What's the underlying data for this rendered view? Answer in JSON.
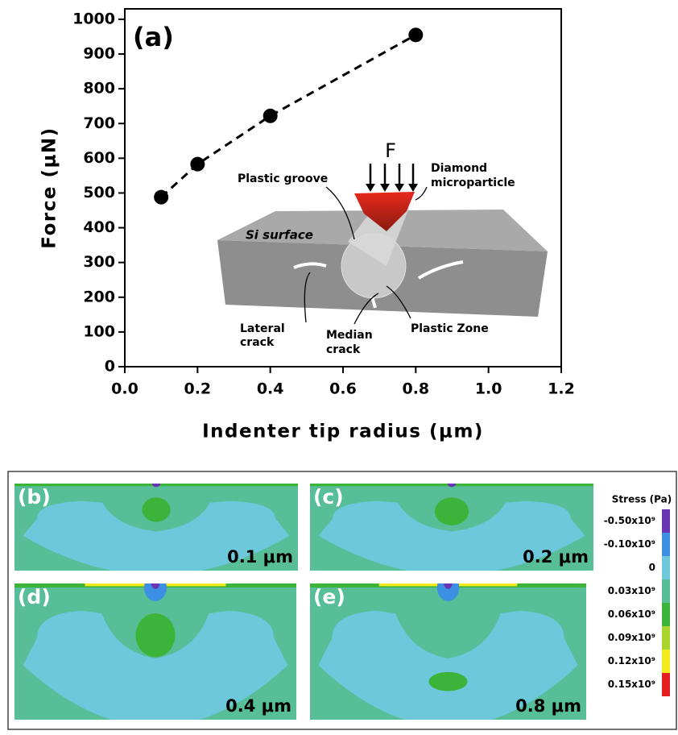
{
  "chart_data": {
    "type": "line",
    "panel_label": "(a)",
    "x": [
      0.1,
      0.2,
      0.4,
      0.8
    ],
    "values": [
      488,
      583,
      722,
      955
    ],
    "color": "#000000",
    "line_style": "dashed",
    "marker": "circle",
    "xlabel": "Indenter tip radius (μm)",
    "ylabel": "Force (μN)",
    "xlim": [
      0,
      1.2
    ],
    "xticks": [
      {
        "value": 0,
        "label": "0.0"
      },
      0.2,
      0.4,
      0.6,
      0.8,
      {
        "value": 1,
        "label": "1.0"
      },
      1.2
    ],
    "ylim": [
      0,
      1030
    ],
    "yticks": [
      0,
      100,
      200,
      300,
      400,
      500,
      600,
      700,
      800,
      900,
      1000
    ]
  },
  "inset": {
    "force": "F",
    "diamond": "Diamond",
    "microparticle": "microparticle",
    "groove": "Plastic groove",
    "surface": "Si surface",
    "lateral": "Lateral",
    "lateral_crack": "crack",
    "median": "Median",
    "median_crack": "crack",
    "zone": "Plastic Zone"
  },
  "stress_maps": [
    {
      "label": "(b)",
      "radius": "0.1 μm"
    },
    {
      "label": "(c)",
      "radius": "0.2 μm"
    },
    {
      "label": "(d)",
      "radius": "0.4 μm"
    },
    {
      "label": "(e)",
      "radius": "0.8 μm"
    }
  ],
  "stress_legend": {
    "title": "Stress (Pa)",
    "levels": [
      {
        "label": "-0.50x10⁹",
        "color": "#6a35b5"
      },
      {
        "label": "-0.10x10⁹",
        "color": "#3d8fe3"
      },
      {
        "label": "0",
        "color": "#6cc8da"
      },
      {
        "label": "0.03x10⁹",
        "color": "#57be98"
      },
      {
        "label": "0.06x10⁹",
        "color": "#3cb43a"
      },
      {
        "label": "0.09x10⁹",
        "color": "#a8d62c"
      },
      {
        "label": "0.12x10⁹",
        "color": "#f2ea1c"
      },
      {
        "label": "0.15x10⁹",
        "color": "#e41e1e"
      }
    ]
  }
}
